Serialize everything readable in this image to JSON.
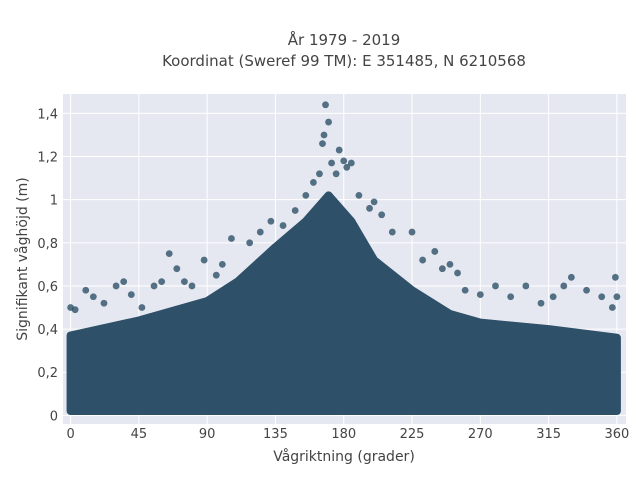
{
  "chart_data": {
    "type": "scatter",
    "title_lines": [
      "År 1979 - 2019",
      "Koordinat (Sweref 99 TM): E 351485, N 6210568"
    ],
    "xlabel": "Vågriktning (grader)",
    "ylabel": "Signifikant våghöjd (m)",
    "xlim": [
      -5,
      366
    ],
    "ylim": [
      -0.04,
      1.49
    ],
    "x_ticks": [
      {
        "value": 0,
        "label": "0"
      },
      {
        "value": 45,
        "label": "45"
      },
      {
        "value": 90,
        "label": "90"
      },
      {
        "value": 135,
        "label": "135"
      },
      {
        "value": 180,
        "label": "180"
      },
      {
        "value": 225,
        "label": "225"
      },
      {
        "value": 270,
        "label": "270"
      },
      {
        "value": 315,
        "label": "315"
      },
      {
        "value": 360,
        "label": "360"
      }
    ],
    "y_ticks": [
      {
        "value": 0,
        "label": "0"
      },
      {
        "value": 0.2,
        "label": "0,2"
      },
      {
        "value": 0.4,
        "label": "0,4"
      },
      {
        "value": 0.6,
        "label": "0,6"
      },
      {
        "value": 0.8,
        "label": "0,8"
      },
      {
        "value": 1.0,
        "label": "1"
      },
      {
        "value": 1.2,
        "label": "1,2"
      },
      {
        "value": 1.4,
        "label": "1,4"
      }
    ],
    "grid": true,
    "marker_color": "#2e5068",
    "plot_bgcolor": "#e5e8f0",
    "dense_band": {
      "x_range": [
        0,
        360
      ],
      "y_range": [
        0.02,
        0.35
      ]
    },
    "envelope": [
      {
        "x": 0,
        "y": 0.37
      },
      {
        "x": 45,
        "y": 0.44
      },
      {
        "x": 90,
        "y": 0.53
      },
      {
        "x": 110,
        "y": 0.62
      },
      {
        "x": 135,
        "y": 0.78
      },
      {
        "x": 155,
        "y": 0.9
      },
      {
        "x": 170,
        "y": 1.02
      },
      {
        "x": 185,
        "y": 0.9
      },
      {
        "x": 200,
        "y": 0.72
      },
      {
        "x": 225,
        "y": 0.58
      },
      {
        "x": 250,
        "y": 0.47
      },
      {
        "x": 270,
        "y": 0.43
      },
      {
        "x": 315,
        "y": 0.4
      },
      {
        "x": 360,
        "y": 0.36
      }
    ],
    "points": [
      {
        "x": 0,
        "y": 0.5
      },
      {
        "x": 3,
        "y": 0.49
      },
      {
        "x": 10,
        "y": 0.58
      },
      {
        "x": 15,
        "y": 0.55
      },
      {
        "x": 22,
        "y": 0.52
      },
      {
        "x": 30,
        "y": 0.6
      },
      {
        "x": 35,
        "y": 0.62
      },
      {
        "x": 40,
        "y": 0.56
      },
      {
        "x": 47,
        "y": 0.5
      },
      {
        "x": 55,
        "y": 0.6
      },
      {
        "x": 60,
        "y": 0.62
      },
      {
        "x": 65,
        "y": 0.75
      },
      {
        "x": 70,
        "y": 0.68
      },
      {
        "x": 75,
        "y": 0.62
      },
      {
        "x": 80,
        "y": 0.6
      },
      {
        "x": 88,
        "y": 0.72
      },
      {
        "x": 96,
        "y": 0.65
      },
      {
        "x": 100,
        "y": 0.7
      },
      {
        "x": 106,
        "y": 0.82
      },
      {
        "x": 118,
        "y": 0.8
      },
      {
        "x": 125,
        "y": 0.85
      },
      {
        "x": 132,
        "y": 0.9
      },
      {
        "x": 140,
        "y": 0.88
      },
      {
        "x": 148,
        "y": 0.95
      },
      {
        "x": 155,
        "y": 1.02
      },
      {
        "x": 160,
        "y": 1.08
      },
      {
        "x": 164,
        "y": 1.12
      },
      {
        "x": 166,
        "y": 1.26
      },
      {
        "x": 167,
        "y": 1.3
      },
      {
        "x": 168,
        "y": 1.44
      },
      {
        "x": 170,
        "y": 1.36
      },
      {
        "x": 172,
        "y": 1.17
      },
      {
        "x": 175,
        "y": 1.12
      },
      {
        "x": 177,
        "y": 1.23
      },
      {
        "x": 180,
        "y": 1.18
      },
      {
        "x": 182,
        "y": 1.15
      },
      {
        "x": 185,
        "y": 1.17
      },
      {
        "x": 190,
        "y": 1.02
      },
      {
        "x": 197,
        "y": 0.96
      },
      {
        "x": 200,
        "y": 0.99
      },
      {
        "x": 205,
        "y": 0.93
      },
      {
        "x": 212,
        "y": 0.85
      },
      {
        "x": 225,
        "y": 0.85
      },
      {
        "x": 232,
        "y": 0.72
      },
      {
        "x": 240,
        "y": 0.76
      },
      {
        "x": 245,
        "y": 0.68
      },
      {
        "x": 250,
        "y": 0.7
      },
      {
        "x": 255,
        "y": 0.66
      },
      {
        "x": 260,
        "y": 0.58
      },
      {
        "x": 270,
        "y": 0.56
      },
      {
        "x": 280,
        "y": 0.6
      },
      {
        "x": 290,
        "y": 0.55
      },
      {
        "x": 300,
        "y": 0.6
      },
      {
        "x": 310,
        "y": 0.52
      },
      {
        "x": 318,
        "y": 0.55
      },
      {
        "x": 325,
        "y": 0.6
      },
      {
        "x": 330,
        "y": 0.64
      },
      {
        "x": 340,
        "y": 0.58
      },
      {
        "x": 350,
        "y": 0.55
      },
      {
        "x": 357,
        "y": 0.5
      },
      {
        "x": 359,
        "y": 0.64
      },
      {
        "x": 360,
        "y": 0.55
      }
    ]
  }
}
